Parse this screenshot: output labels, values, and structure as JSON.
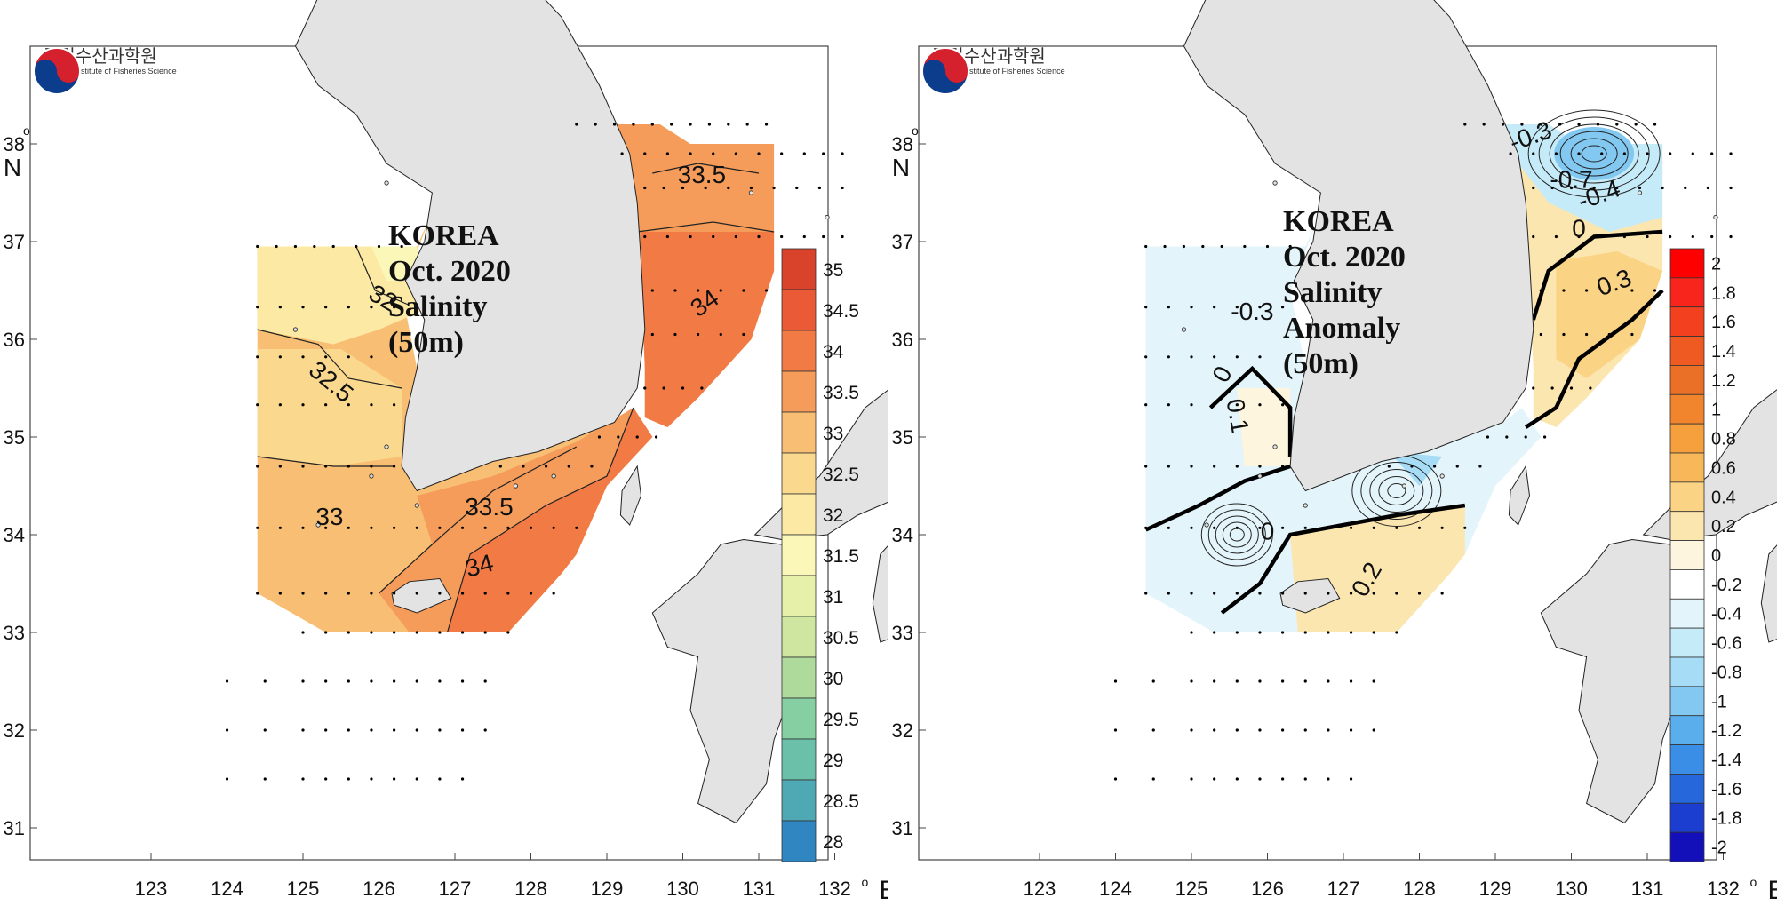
{
  "institute": {
    "name_ko": "국립수산과학원",
    "name_en": "National Institute of Fisheries Science"
  },
  "axes": {
    "x_ticks": [
      "123",
      "124",
      "125",
      "126",
      "127",
      "128",
      "129",
      "130",
      "131",
      "132"
    ],
    "y_ticks": [
      "38",
      "37",
      "36",
      "35",
      "34",
      "33",
      "32",
      "31"
    ],
    "x_unit": "E",
    "y_unit": "N",
    "degree": "o"
  },
  "left_map": {
    "title_lines": [
      "KOREA",
      "Oct. 2020",
      "Salinity",
      "(50m)"
    ],
    "contour_labels": [
      "32",
      "32.5",
      "33",
      "33.5",
      "34",
      "33.5",
      "34"
    ],
    "colorbar": {
      "labels": [
        "35",
        "34.5",
        "34",
        "33.5",
        "33",
        "32.5",
        "32",
        "31.5",
        "31",
        "30.5",
        "30",
        "29.5",
        "29",
        "28.5",
        "28"
      ],
      "colors": [
        "#d9432b",
        "#ea5a36",
        "#f27a45",
        "#f59c5a",
        "#f8bf74",
        "#fad98f",
        "#fbe9a4",
        "#fbf7b8",
        "#e7f0a8",
        "#cfe6a0",
        "#aedb9b",
        "#86cfa2",
        "#6bc0aa",
        "#4fa9b5",
        "#2f86c0"
      ]
    }
  },
  "right_map": {
    "title_lines": [
      "KOREA",
      "Oct. 2020",
      "Salinity",
      "Anomaly",
      "(50m)"
    ],
    "contour_labels": [
      "-0.3",
      "-0.7",
      "-0.4",
      "0",
      "0.3",
      "-0.3",
      "0",
      "0.1",
      "0",
      "0.2"
    ],
    "colorbar": {
      "labels": [
        "2",
        "1.8",
        "1.6",
        "1.4",
        "1.2",
        "1",
        "0.8",
        "0.6",
        "0.4",
        "0.2",
        "0",
        "-0.2",
        "-0.4",
        "-0.6",
        "-0.8",
        "-1",
        "-1.2",
        "-1.4",
        "-1.6",
        "-1.8",
        "-2"
      ],
      "colors": [
        "#ff0000",
        "#f8251c",
        "#f3401f",
        "#ef5a23",
        "#eb7027",
        "#f1852e",
        "#f5a03c",
        "#f8b85a",
        "#fad384",
        "#fce6b0",
        "#fdf5dd",
        "#ffffff",
        "#e3f5fb",
        "#c6ebf8",
        "#a6dcf5",
        "#82c8f1",
        "#5aaeec",
        "#3a8ee6",
        "#2668dc",
        "#1b3ed0",
        "#1410b9"
      ]
    }
  }
}
